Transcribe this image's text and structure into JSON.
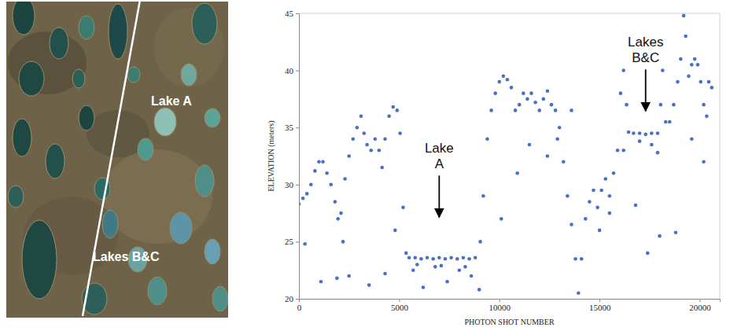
{
  "chart_data": {
    "type": "scatter",
    "color": "#4a6fc8",
    "x_label": "PHOTON SHOT NUMBER",
    "y_label": "ELEVATION (meters)",
    "xlim": [
      0,
      21000
    ],
    "xticks": [
      0,
      5000,
      10000,
      15000,
      20000
    ],
    "ylim": [
      20,
      45
    ],
    "yticks": [
      20,
      25,
      30,
      35,
      40,
      45
    ],
    "annotations": [
      {
        "text": "Lake A",
        "x": 7000,
        "y": 27
      },
      {
        "text": "Lakes B&C",
        "x": 17300,
        "y": 36.3
      }
    ],
    "x": [
      0,
      200,
      400,
      600,
      800,
      1000,
      1200,
      1400,
      1600,
      1800,
      1950,
      2100,
      2300,
      2500,
      2700,
      2900,
      3100,
      3250,
      3400,
      3600,
      3800,
      4000,
      4150,
      4300,
      4500,
      4700,
      4900,
      5050,
      5200,
      5350,
      5500,
      5800,
      6100,
      6400,
      6700,
      7000,
      7300,
      7600,
      7900,
      8200,
      8500,
      8800,
      9050,
      9200,
      9400,
      9600,
      9800,
      10000,
      10200,
      10400,
      10600,
      10800,
      11000,
      11200,
      11400,
      11600,
      11800,
      12000,
      12200,
      12400,
      12600,
      12800,
      13000,
      13200,
      13400,
      13600,
      13800,
      13950,
      14100,
      14300,
      14500,
      14700,
      14900,
      15100,
      15300,
      15500,
      15700,
      15900,
      16050,
      16200,
      16350,
      16450,
      16700,
      17000,
      17300,
      17600,
      17900,
      18050,
      18150,
      18300,
      18500,
      18700,
      18900,
      19050,
      19200,
      19300,
      19450,
      19600,
      19750,
      19900,
      20050,
      20200,
      20350,
      20450,
      20600,
      300,
      1100,
      1900,
      2500,
      3500,
      4300,
      4800,
      5700,
      6200,
      6800,
      7400,
      8000,
      8600,
      9000,
      10100,
      10900,
      12400,
      13600,
      15000,
      15500,
      16800,
      17400,
      17900,
      18000,
      18800,
      19600,
      20200,
      2200,
      11500,
      12900,
      5900,
      7100,
      8300,
      16200,
      17000,
      17600
    ],
    "values": [
      28.3,
      28.8,
      29.2,
      30,
      31.2,
      32,
      32,
      31,
      30,
      28.5,
      27,
      27.5,
      30.5,
      32.5,
      34,
      35,
      36,
      34.5,
      33.5,
      33,
      34,
      33,
      31.5,
      34,
      36,
      36.8,
      36.5,
      34.5,
      28,
      24,
      23.6,
      23.6,
      23.5,
      23.6,
      23.5,
      23.6,
      23.5,
      23.6,
      23.5,
      23.6,
      23.5,
      23.6,
      25,
      29,
      34,
      36.5,
      38,
      39,
      39.5,
      39.2,
      38.5,
      36.5,
      37,
      38,
      37.5,
      38,
      37.2,
      36.5,
      37.5,
      38.2,
      37,
      36.5,
      35,
      32,
      29,
      26.5,
      23.5,
      20.5,
      23.5,
      27,
      28.5,
      29.5,
      28,
      29.5,
      30.5,
      29,
      31,
      33,
      38,
      40,
      37,
      34.6,
      34.5,
      34.5,
      34.4,
      34.5,
      34.5,
      37,
      40,
      35.5,
      35.5,
      37,
      39,
      41,
      44.8,
      43,
      39.5,
      40.5,
      41,
      40.5,
      39,
      37,
      36,
      39,
      38.5,
      24.8,
      21.5,
      21.8,
      22,
      21.2,
      22.2,
      26,
      22.5,
      21,
      22.8,
      21.5,
      22.5,
      22,
      20.8,
      27,
      31,
      32.5,
      36.5,
      26,
      27.5,
      28.2,
      24,
      32.8,
      25.5,
      25.8,
      34,
      32,
      25,
      33.5,
      34,
      23,
      22.9,
      22.8,
      33,
      33.8,
      33.5
    ]
  },
  "image": {
    "labels": [
      "Lake A",
      "Lakes B&C"
    ]
  }
}
